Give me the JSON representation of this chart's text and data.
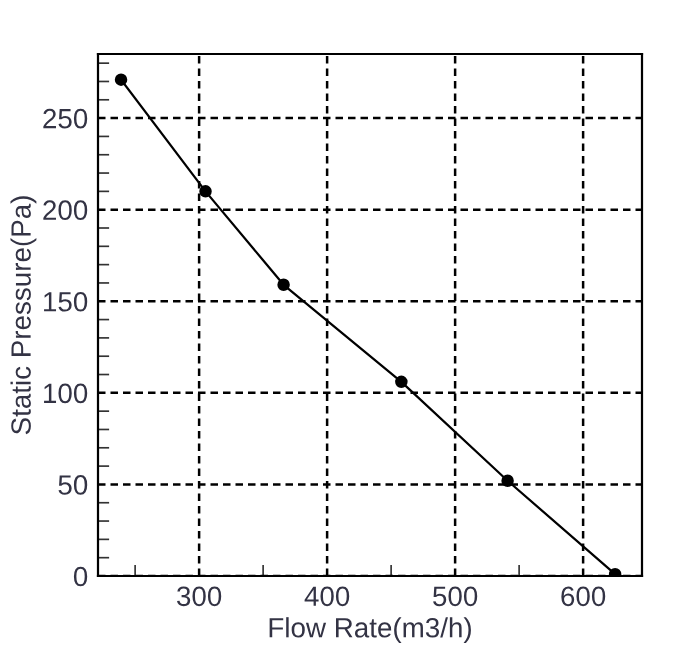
{
  "chart_data": {
    "type": "line",
    "xlabel": "Flow Rate(m3/h)",
    "ylabel": "Static Pressure(Pa)",
    "x": [
      239,
      305,
      366,
      458,
      541,
      625
    ],
    "series": [
      {
        "color": "#000000",
        "values": [
          271,
          210,
          159,
          106,
          52,
          1
        ]
      }
    ],
    "marker": "circle",
    "line_style": "solid",
    "xlim": [
      221,
      646
    ],
    "ylim": [
      0,
      285
    ],
    "xticks": [
      300,
      400,
      500,
      600
    ],
    "yticks": [
      0,
      50,
      100,
      150,
      200,
      250
    ],
    "grid": true
  }
}
